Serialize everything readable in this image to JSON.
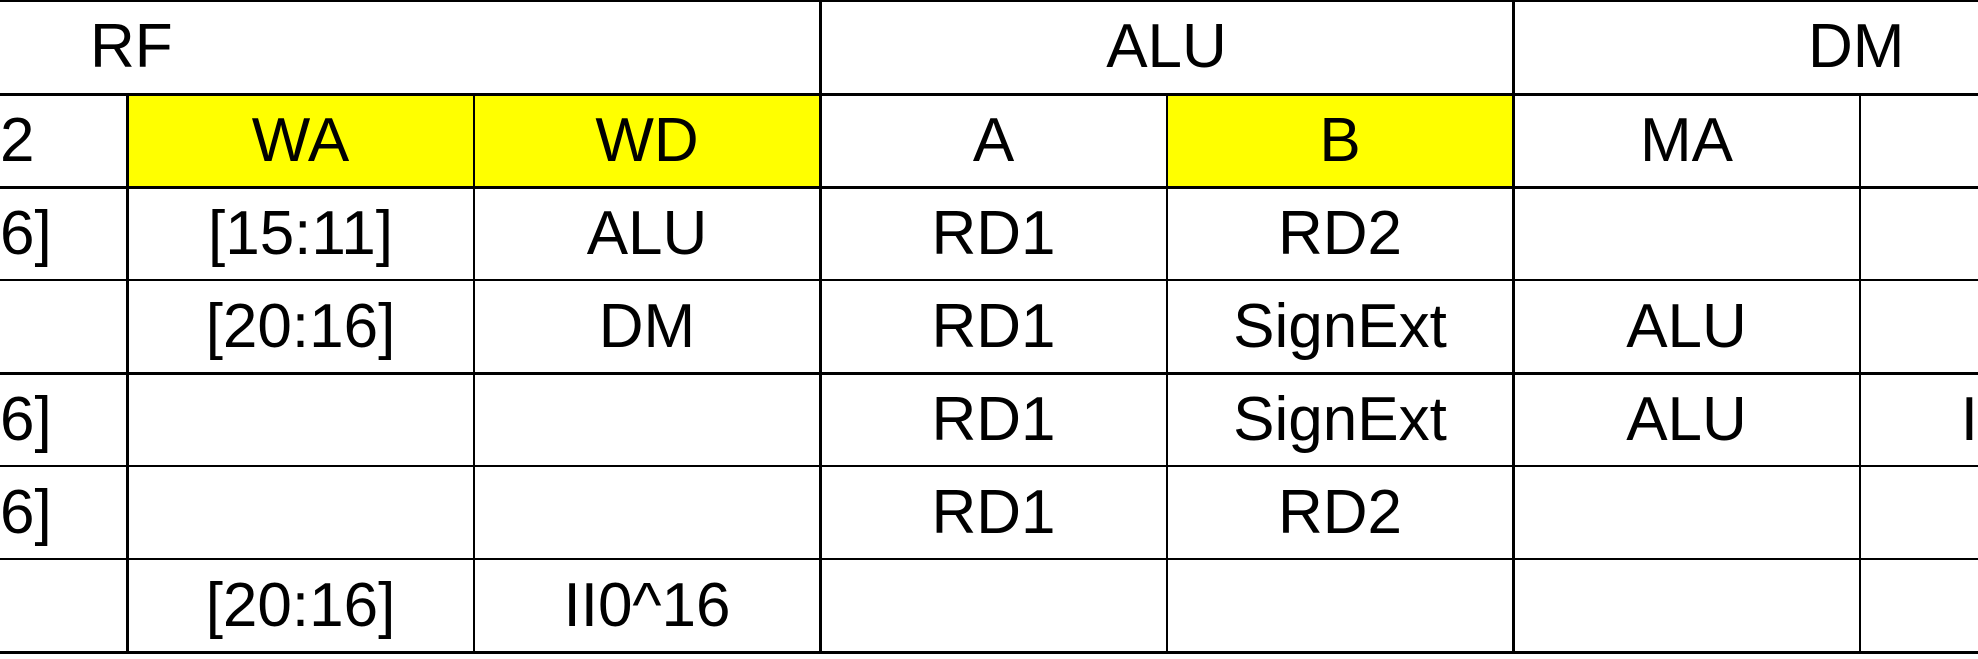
{
  "colors": {
    "header_highlight": "#ffff00",
    "grid": "#000000",
    "background": "#ffffff"
  },
  "groups": {
    "rf": "RF",
    "alu": "ALU",
    "dm": "DM"
  },
  "headers": {
    "partial_left": "2",
    "wa": "WA",
    "wd": "WD",
    "a": "A",
    "b": "B",
    "ma": "MA"
  },
  "rows": [
    {
      "partial_left": "6]",
      "wa": "[15:11]",
      "wd": "ALU",
      "a": "RD1",
      "b": "RD2",
      "ma": "",
      "partial_right": ""
    },
    {
      "partial_left": "",
      "wa": "[20:16]",
      "wd": "DM",
      "a": "RD1",
      "b": "SignExt",
      "ma": "ALU",
      "partial_right": ""
    },
    {
      "partial_left": "6]",
      "wa": "",
      "wd": "",
      "a": "RD1",
      "b": "SignExt",
      "ma": "ALU",
      "partial_right": "I"
    },
    {
      "partial_left": "6]",
      "wa": "",
      "wd": "",
      "a": "RD1",
      "b": "RD2",
      "ma": "",
      "partial_right": ""
    },
    {
      "partial_left": "",
      "wa": "[20:16]",
      "wd": "II0^16",
      "a": "",
      "b": "",
      "ma": "",
      "partial_right": ""
    }
  ]
}
